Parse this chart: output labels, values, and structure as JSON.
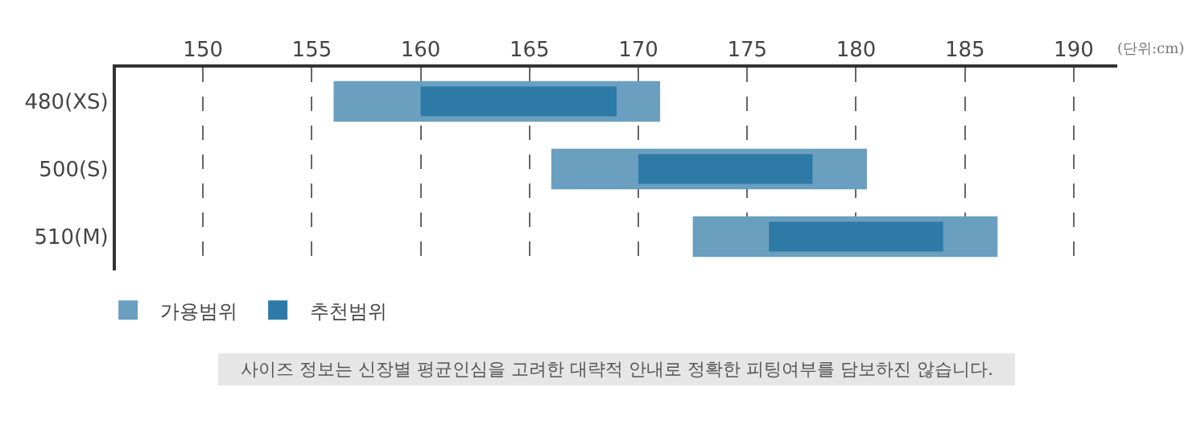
{
  "chart_data": {
    "type": "bar",
    "orientation": "horizontal",
    "categories": [
      "480(XS)",
      "500(S)",
      "510(M)"
    ],
    "series": [
      {
        "name": "가용범위",
        "color": "#6a9fc0",
        "values": [
          15,
          14.5,
          14
        ],
        "base": [
          156,
          166,
          172.5
        ]
      },
      {
        "name": "추천범위",
        "color": "#2e7aa6",
        "values": [
          9,
          8,
          8
        ],
        "base": [
          160,
          170,
          176
        ]
      }
    ],
    "xlim": [
      146,
      192
    ],
    "xticks": [
      150,
      155,
      160,
      165,
      170,
      175,
      180,
      185,
      190
    ],
    "grid": "x",
    "legend": "bottom left",
    "annotations": [
      "(단위:cm)",
      "사이즈 정보는 신장별 평균인심을 고려한 대략적 안내로 정확한 피팅여부를 담보하진 않습니다."
    ]
  }
}
